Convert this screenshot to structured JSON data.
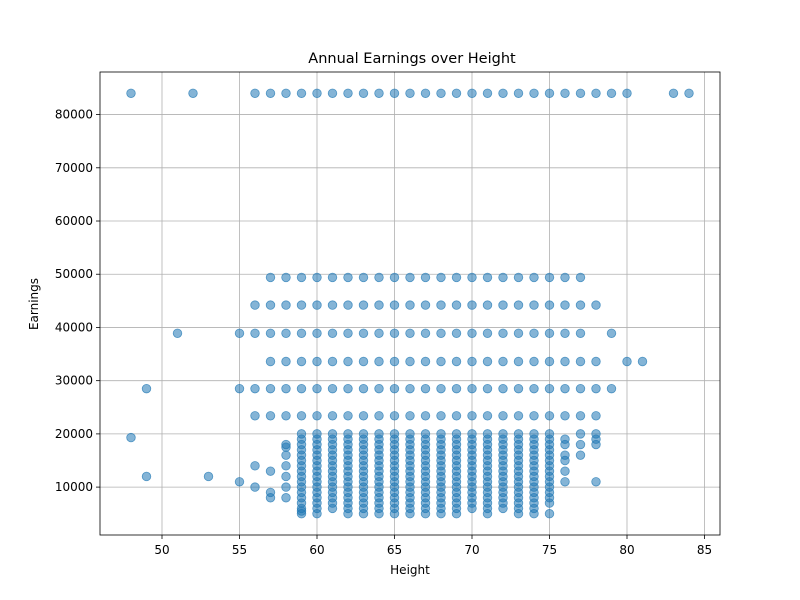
{
  "chart_data": {
    "type": "scatter",
    "title": "Annual Earnings over Height",
    "xlabel": "Height",
    "ylabel": "Earnings",
    "xlim": [
      46,
      86
    ],
    "ylim": [
      1000,
      88000
    ],
    "xticks": [
      50,
      55,
      60,
      65,
      70,
      75,
      80,
      85
    ],
    "yticks": [
      10000,
      20000,
      30000,
      40000,
      50000,
      60000,
      70000,
      80000
    ],
    "grid": true,
    "marker_color": "#1f77b4",
    "marker_alpha": 0.55,
    "series": [
      {
        "points": [
          [
            48,
            84000
          ],
          [
            52,
            84000
          ],
          [
            56,
            84000
          ],
          [
            57,
            84000
          ],
          [
            58,
            84000
          ],
          [
            59,
            84000
          ],
          [
            60,
            84000
          ],
          [
            61,
            84000
          ],
          [
            62,
            84000
          ],
          [
            63,
            84000
          ],
          [
            64,
            84000
          ],
          [
            65,
            84000
          ],
          [
            66,
            84000
          ],
          [
            67,
            84000
          ],
          [
            68,
            84000
          ],
          [
            69,
            84000
          ],
          [
            70,
            84000
          ],
          [
            71,
            84000
          ],
          [
            72,
            84000
          ],
          [
            73,
            84000
          ],
          [
            74,
            84000
          ],
          [
            75,
            84000
          ],
          [
            76,
            84000
          ],
          [
            77,
            84000
          ],
          [
            78,
            84000
          ],
          [
            79,
            84000
          ],
          [
            80,
            84000
          ],
          [
            83,
            84000
          ],
          [
            84,
            84000
          ],
          [
            57,
            49400
          ],
          [
            58,
            49400
          ],
          [
            59,
            49400
          ],
          [
            60,
            49400
          ],
          [
            61,
            49400
          ],
          [
            62,
            49400
          ],
          [
            63,
            49400
          ],
          [
            64,
            49400
          ],
          [
            65,
            49400
          ],
          [
            66,
            49400
          ],
          [
            67,
            49400
          ],
          [
            68,
            49400
          ],
          [
            69,
            49400
          ],
          [
            70,
            49400
          ],
          [
            71,
            49400
          ],
          [
            72,
            49400
          ],
          [
            73,
            49400
          ],
          [
            74,
            49400
          ],
          [
            75,
            49400
          ],
          [
            76,
            49400
          ],
          [
            77,
            49400
          ],
          [
            56,
            44200
          ],
          [
            57,
            44200
          ],
          [
            58,
            44200
          ],
          [
            59,
            44200
          ],
          [
            60,
            44200
          ],
          [
            61,
            44200
          ],
          [
            62,
            44200
          ],
          [
            63,
            44200
          ],
          [
            64,
            44200
          ],
          [
            65,
            44200
          ],
          [
            66,
            44200
          ],
          [
            67,
            44200
          ],
          [
            68,
            44200
          ],
          [
            69,
            44200
          ],
          [
            70,
            44200
          ],
          [
            71,
            44200
          ],
          [
            72,
            44200
          ],
          [
            73,
            44200
          ],
          [
            74,
            44200
          ],
          [
            75,
            44200
          ],
          [
            76,
            44200
          ],
          [
            77,
            44200
          ],
          [
            78,
            44200
          ],
          [
            51,
            38900
          ],
          [
            55,
            38900
          ],
          [
            56,
            38900
          ],
          [
            57,
            38900
          ],
          [
            58,
            38900
          ],
          [
            59,
            38900
          ],
          [
            60,
            38900
          ],
          [
            61,
            38900
          ],
          [
            62,
            38900
          ],
          [
            63,
            38900
          ],
          [
            64,
            38900
          ],
          [
            65,
            38900
          ],
          [
            66,
            38900
          ],
          [
            67,
            38900
          ],
          [
            68,
            38900
          ],
          [
            69,
            38900
          ],
          [
            70,
            38900
          ],
          [
            71,
            38900
          ],
          [
            72,
            38900
          ],
          [
            73,
            38900
          ],
          [
            74,
            38900
          ],
          [
            75,
            38900
          ],
          [
            76,
            38900
          ],
          [
            77,
            38900
          ],
          [
            79,
            38900
          ],
          [
            57,
            33600
          ],
          [
            58,
            33600
          ],
          [
            59,
            33600
          ],
          [
            60,
            33600
          ],
          [
            61,
            33600
          ],
          [
            62,
            33600
          ],
          [
            63,
            33600
          ],
          [
            64,
            33600
          ],
          [
            65,
            33600
          ],
          [
            66,
            33600
          ],
          [
            67,
            33600
          ],
          [
            68,
            33600
          ],
          [
            69,
            33600
          ],
          [
            70,
            33600
          ],
          [
            71,
            33600
          ],
          [
            72,
            33600
          ],
          [
            73,
            33600
          ],
          [
            74,
            33600
          ],
          [
            75,
            33600
          ],
          [
            76,
            33600
          ],
          [
            77,
            33600
          ],
          [
            78,
            33600
          ],
          [
            80,
            33600
          ],
          [
            81,
            33600
          ],
          [
            49,
            28500
          ],
          [
            55,
            28500
          ],
          [
            56,
            28500
          ],
          [
            57,
            28500
          ],
          [
            58,
            28500
          ],
          [
            59,
            28500
          ],
          [
            60,
            28500
          ],
          [
            61,
            28500
          ],
          [
            62,
            28500
          ],
          [
            63,
            28500
          ],
          [
            64,
            28500
          ],
          [
            65,
            28500
          ],
          [
            66,
            28500
          ],
          [
            67,
            28500
          ],
          [
            68,
            28500
          ],
          [
            69,
            28500
          ],
          [
            70,
            28500
          ],
          [
            71,
            28500
          ],
          [
            72,
            28500
          ],
          [
            73,
            28500
          ],
          [
            74,
            28500
          ],
          [
            75,
            28500
          ],
          [
            76,
            28500
          ],
          [
            77,
            28500
          ],
          [
            78,
            28500
          ],
          [
            79,
            28500
          ],
          [
            56,
            23400
          ],
          [
            57,
            23400
          ],
          [
            58,
            23400
          ],
          [
            59,
            23400
          ],
          [
            60,
            23400
          ],
          [
            61,
            23400
          ],
          [
            62,
            23400
          ],
          [
            63,
            23400
          ],
          [
            64,
            23400
          ],
          [
            65,
            23400
          ],
          [
            66,
            23400
          ],
          [
            67,
            23400
          ],
          [
            68,
            23400
          ],
          [
            69,
            23400
          ],
          [
            70,
            23400
          ],
          [
            71,
            23400
          ],
          [
            72,
            23400
          ],
          [
            73,
            23400
          ],
          [
            74,
            23400
          ],
          [
            75,
            23400
          ],
          [
            76,
            23400
          ],
          [
            77,
            23400
          ],
          [
            78,
            23400
          ],
          [
            48,
            19300
          ],
          [
            49,
            12000
          ],
          [
            53,
            12000
          ],
          [
            55,
            11000
          ],
          [
            56,
            14000
          ],
          [
            56,
            10000
          ],
          [
            57,
            13000
          ],
          [
            57,
            9000
          ],
          [
            57,
            8000
          ],
          [
            78,
            11000
          ]
        ],
        "dense_columns": [
          {
            "x": 58,
            "y": [
              8000,
              10000,
              12000,
              14000,
              16000,
              17500,
              18000
            ]
          },
          {
            "x": 59,
            "y": [
              5000,
              5500,
              6000,
              7000,
              8000,
              9000,
              10000,
              11000,
              12000,
              13000,
              14000,
              15000,
              16000,
              17000,
              18000,
              19000,
              20000
            ]
          },
          {
            "x": 60,
            "y": [
              5000,
              6000,
              7000,
              8000,
              9000,
              10000,
              11000,
              12000,
              13000,
              14000,
              15000,
              16000,
              17000,
              18000,
              19000,
              20000
            ]
          },
          {
            "x": 61,
            "y": [
              6000,
              7000,
              8000,
              9000,
              10000,
              11000,
              12000,
              13000,
              14000,
              15000,
              16000,
              17000,
              18000,
              19000,
              20000
            ]
          },
          {
            "x": 62,
            "y": [
              5000,
              6000,
              7000,
              8000,
              9000,
              10000,
              11000,
              12000,
              13000,
              14000,
              15000,
              16000,
              17000,
              18000,
              19000,
              20000
            ]
          },
          {
            "x": 63,
            "y": [
              5000,
              6000,
              7000,
              8000,
              9000,
              10000,
              11000,
              12000,
              13000,
              14000,
              15000,
              16000,
              17000,
              18000,
              19000,
              20000
            ]
          },
          {
            "x": 64,
            "y": [
              5000,
              6000,
              7000,
              8000,
              9000,
              10000,
              11000,
              12000,
              13000,
              14000,
              15000,
              16000,
              17000,
              18000,
              19000,
              20000
            ]
          },
          {
            "x": 65,
            "y": [
              5000,
              6000,
              7000,
              8000,
              9000,
              10000,
              11000,
              12000,
              13000,
              14000,
              15000,
              16000,
              17000,
              18000,
              19000,
              20000
            ]
          },
          {
            "x": 66,
            "y": [
              5000,
              6000,
              7000,
              8000,
              9000,
              10000,
              11000,
              12000,
              13000,
              14000,
              15000,
              16000,
              17000,
              18000,
              19000,
              20000
            ]
          },
          {
            "x": 67,
            "y": [
              5000,
              6000,
              7000,
              8000,
              9000,
              10000,
              11000,
              12000,
              13000,
              14000,
              15000,
              16000,
              17000,
              18000,
              19000,
              20000
            ]
          },
          {
            "x": 68,
            "y": [
              5000,
              6000,
              7000,
              8000,
              9000,
              10000,
              11000,
              12000,
              13000,
              14000,
              15000,
              16000,
              17000,
              18000,
              19000,
              20000
            ]
          },
          {
            "x": 69,
            "y": [
              5000,
              6000,
              7000,
              8000,
              9000,
              10000,
              11000,
              12000,
              13000,
              14000,
              15000,
              16000,
              17000,
              18000,
              19000,
              20000
            ]
          },
          {
            "x": 70,
            "y": [
              6000,
              7000,
              8000,
              9000,
              10000,
              11000,
              12000,
              13000,
              14000,
              15000,
              16000,
              17000,
              18000,
              19000,
              20000
            ]
          },
          {
            "x": 71,
            "y": [
              5000,
              6000,
              7000,
              8000,
              9000,
              10000,
              11000,
              12000,
              13000,
              14000,
              15000,
              16000,
              17000,
              18000,
              19000,
              20000
            ]
          },
          {
            "x": 72,
            "y": [
              6000,
              7000,
              8000,
              9000,
              10000,
              11000,
              12000,
              13000,
              14000,
              15000,
              16000,
              17000,
              18000,
              19000,
              20000
            ]
          },
          {
            "x": 73,
            "y": [
              5000,
              6000,
              7000,
              8000,
              9000,
              10000,
              11000,
              12000,
              13000,
              14000,
              15000,
              16000,
              17000,
              18000,
              19000,
              20000
            ]
          },
          {
            "x": 74,
            "y": [
              5000,
              6000,
              7000,
              8000,
              9000,
              10000,
              11000,
              12000,
              13000,
              14000,
              15000,
              16000,
              17000,
              18000,
              19000,
              20000
            ]
          },
          {
            "x": 75,
            "y": [
              5000,
              7000,
              8000,
              9000,
              10000,
              11000,
              12000,
              13000,
              14000,
              15000,
              16000,
              17000,
              18000,
              19000,
              20000
            ]
          },
          {
            "x": 76,
            "y": [
              11000,
              13000,
              15000,
              16000,
              18000,
              19000
            ]
          },
          {
            "x": 77,
            "y": [
              16000,
              18000,
              20000
            ]
          },
          {
            "x": 78,
            "y": [
              18000,
              19000,
              20000
            ]
          }
        ]
      }
    ]
  }
}
